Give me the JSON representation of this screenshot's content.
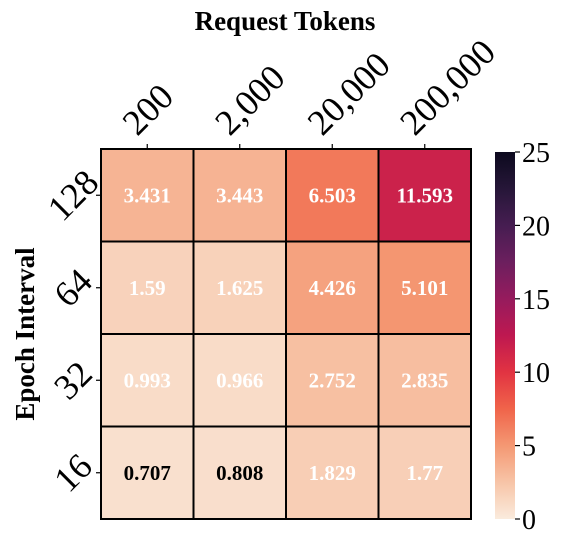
{
  "chart_data": {
    "type": "heatmap",
    "title": "Request Tokens",
    "xlabel": "",
    "ylabel": "Epoch Interval",
    "x_categories": [
      "200",
      "2,000",
      "20,000",
      "200,000"
    ],
    "y_categories": [
      "128",
      "64",
      "32",
      "16"
    ],
    "values": [
      [
        3.431,
        3.443,
        6.503,
        11.593
      ],
      [
        1.59,
        1.625,
        4.426,
        5.101
      ],
      [
        0.993,
        0.966,
        2.752,
        2.835
      ],
      [
        0.707,
        0.808,
        1.829,
        1.77
      ]
    ],
    "value_labels": [
      [
        "3.431",
        "3.443",
        "6.503",
        "11.593"
      ],
      [
        "1.59",
        "1.625",
        "4.426",
        "5.101"
      ],
      [
        "0.993",
        "0.966",
        "2.752",
        "2.835"
      ],
      [
        "0.707",
        "0.808",
        "1.829",
        "1.77"
      ]
    ],
    "colorbar": {
      "min": 0,
      "max": 25,
      "ticks": [
        "0",
        "5",
        "10",
        "15",
        "20",
        "25"
      ],
      "colormap": "rocket_r"
    },
    "grid": true,
    "legend": "colorbar-right"
  }
}
